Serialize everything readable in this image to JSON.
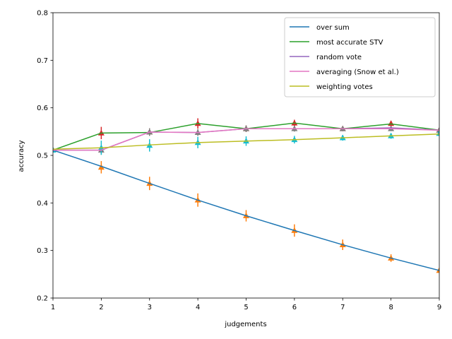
{
  "chart_data": {
    "type": "line",
    "xlabel": "judgements",
    "ylabel": "accuracy",
    "xlim": [
      1,
      9
    ],
    "ylim": [
      0.2,
      0.8
    ],
    "xticks": [
      "1",
      "2",
      "3",
      "4",
      "5",
      "6",
      "7",
      "8",
      "9"
    ],
    "yticks": [
      "0.2",
      "0.3",
      "0.4",
      "0.5",
      "0.6",
      "0.7",
      "0.8"
    ],
    "grid": false,
    "legend_position": "top-right",
    "x": [
      1,
      2,
      3,
      4,
      5,
      6,
      7,
      8,
      9
    ],
    "series": [
      {
        "name": "over sum",
        "color": "#1f77b4",
        "values": [
          0.511,
          0.477,
          0.441,
          0.406,
          0.373,
          0.342,
          0.312,
          0.284,
          0.258
        ]
      },
      {
        "name": "most accurate STV",
        "color": "#2ca02c",
        "values": [
          0.511,
          0.547,
          0.548,
          0.567,
          0.556,
          0.568,
          0.556,
          0.566,
          0.553
        ]
      },
      {
        "name": "random vote",
        "color": "#9467bd",
        "values": [
          0.511,
          0.511,
          0.549,
          0.548,
          0.556,
          0.556,
          0.556,
          0.558,
          0.553
        ]
      },
      {
        "name": "averaging (Snow et al.)",
        "color": "#e377c2",
        "values": [
          0.511,
          0.511,
          0.549,
          0.548,
          0.556,
          0.556,
          0.556,
          0.556,
          0.553
        ]
      },
      {
        "name": "weighting votes",
        "color": "#bcbd22",
        "values": [
          0.513,
          0.516,
          0.522,
          0.527,
          0.53,
          0.533,
          0.537,
          0.541,
          0.545
        ]
      }
    ],
    "error_series": [
      {
        "color": "#ff7f0e",
        "values": [
          0.511,
          0.475,
          0.441,
          0.406,
          0.373,
          0.342,
          0.312,
          0.284,
          0.258
        ],
        "err": [
          0.005,
          0.013,
          0.014,
          0.014,
          0.012,
          0.013,
          0.011,
          0.008,
          0.004
        ]
      },
      {
        "color": "#d62728",
        "values": [
          0.511,
          0.547,
          0.549,
          0.567,
          0.556,
          0.568,
          0.556,
          0.567,
          0.553
        ],
        "err": [
          0.004,
          0.013,
          0.008,
          0.011,
          0.007,
          0.007,
          0.005,
          0.006,
          0.004
        ]
      },
      {
        "color": "#7f7f7f",
        "values": [
          0.511,
          0.511,
          0.549,
          0.548,
          0.556,
          0.556,
          0.556,
          0.556,
          0.553
        ],
        "err": [
          0.004,
          0.009,
          0.008,
          0.007,
          0.007,
          0.006,
          0.005,
          0.005,
          0.004
        ]
      },
      {
        "color": "#17becf",
        "values": [
          0.511,
          0.516,
          0.521,
          0.527,
          0.53,
          0.533,
          0.537,
          0.541,
          0.546
        ],
        "err": [
          0.004,
          0.015,
          0.013,
          0.012,
          0.01,
          0.008,
          0.006,
          0.006,
          0.005
        ]
      }
    ]
  }
}
